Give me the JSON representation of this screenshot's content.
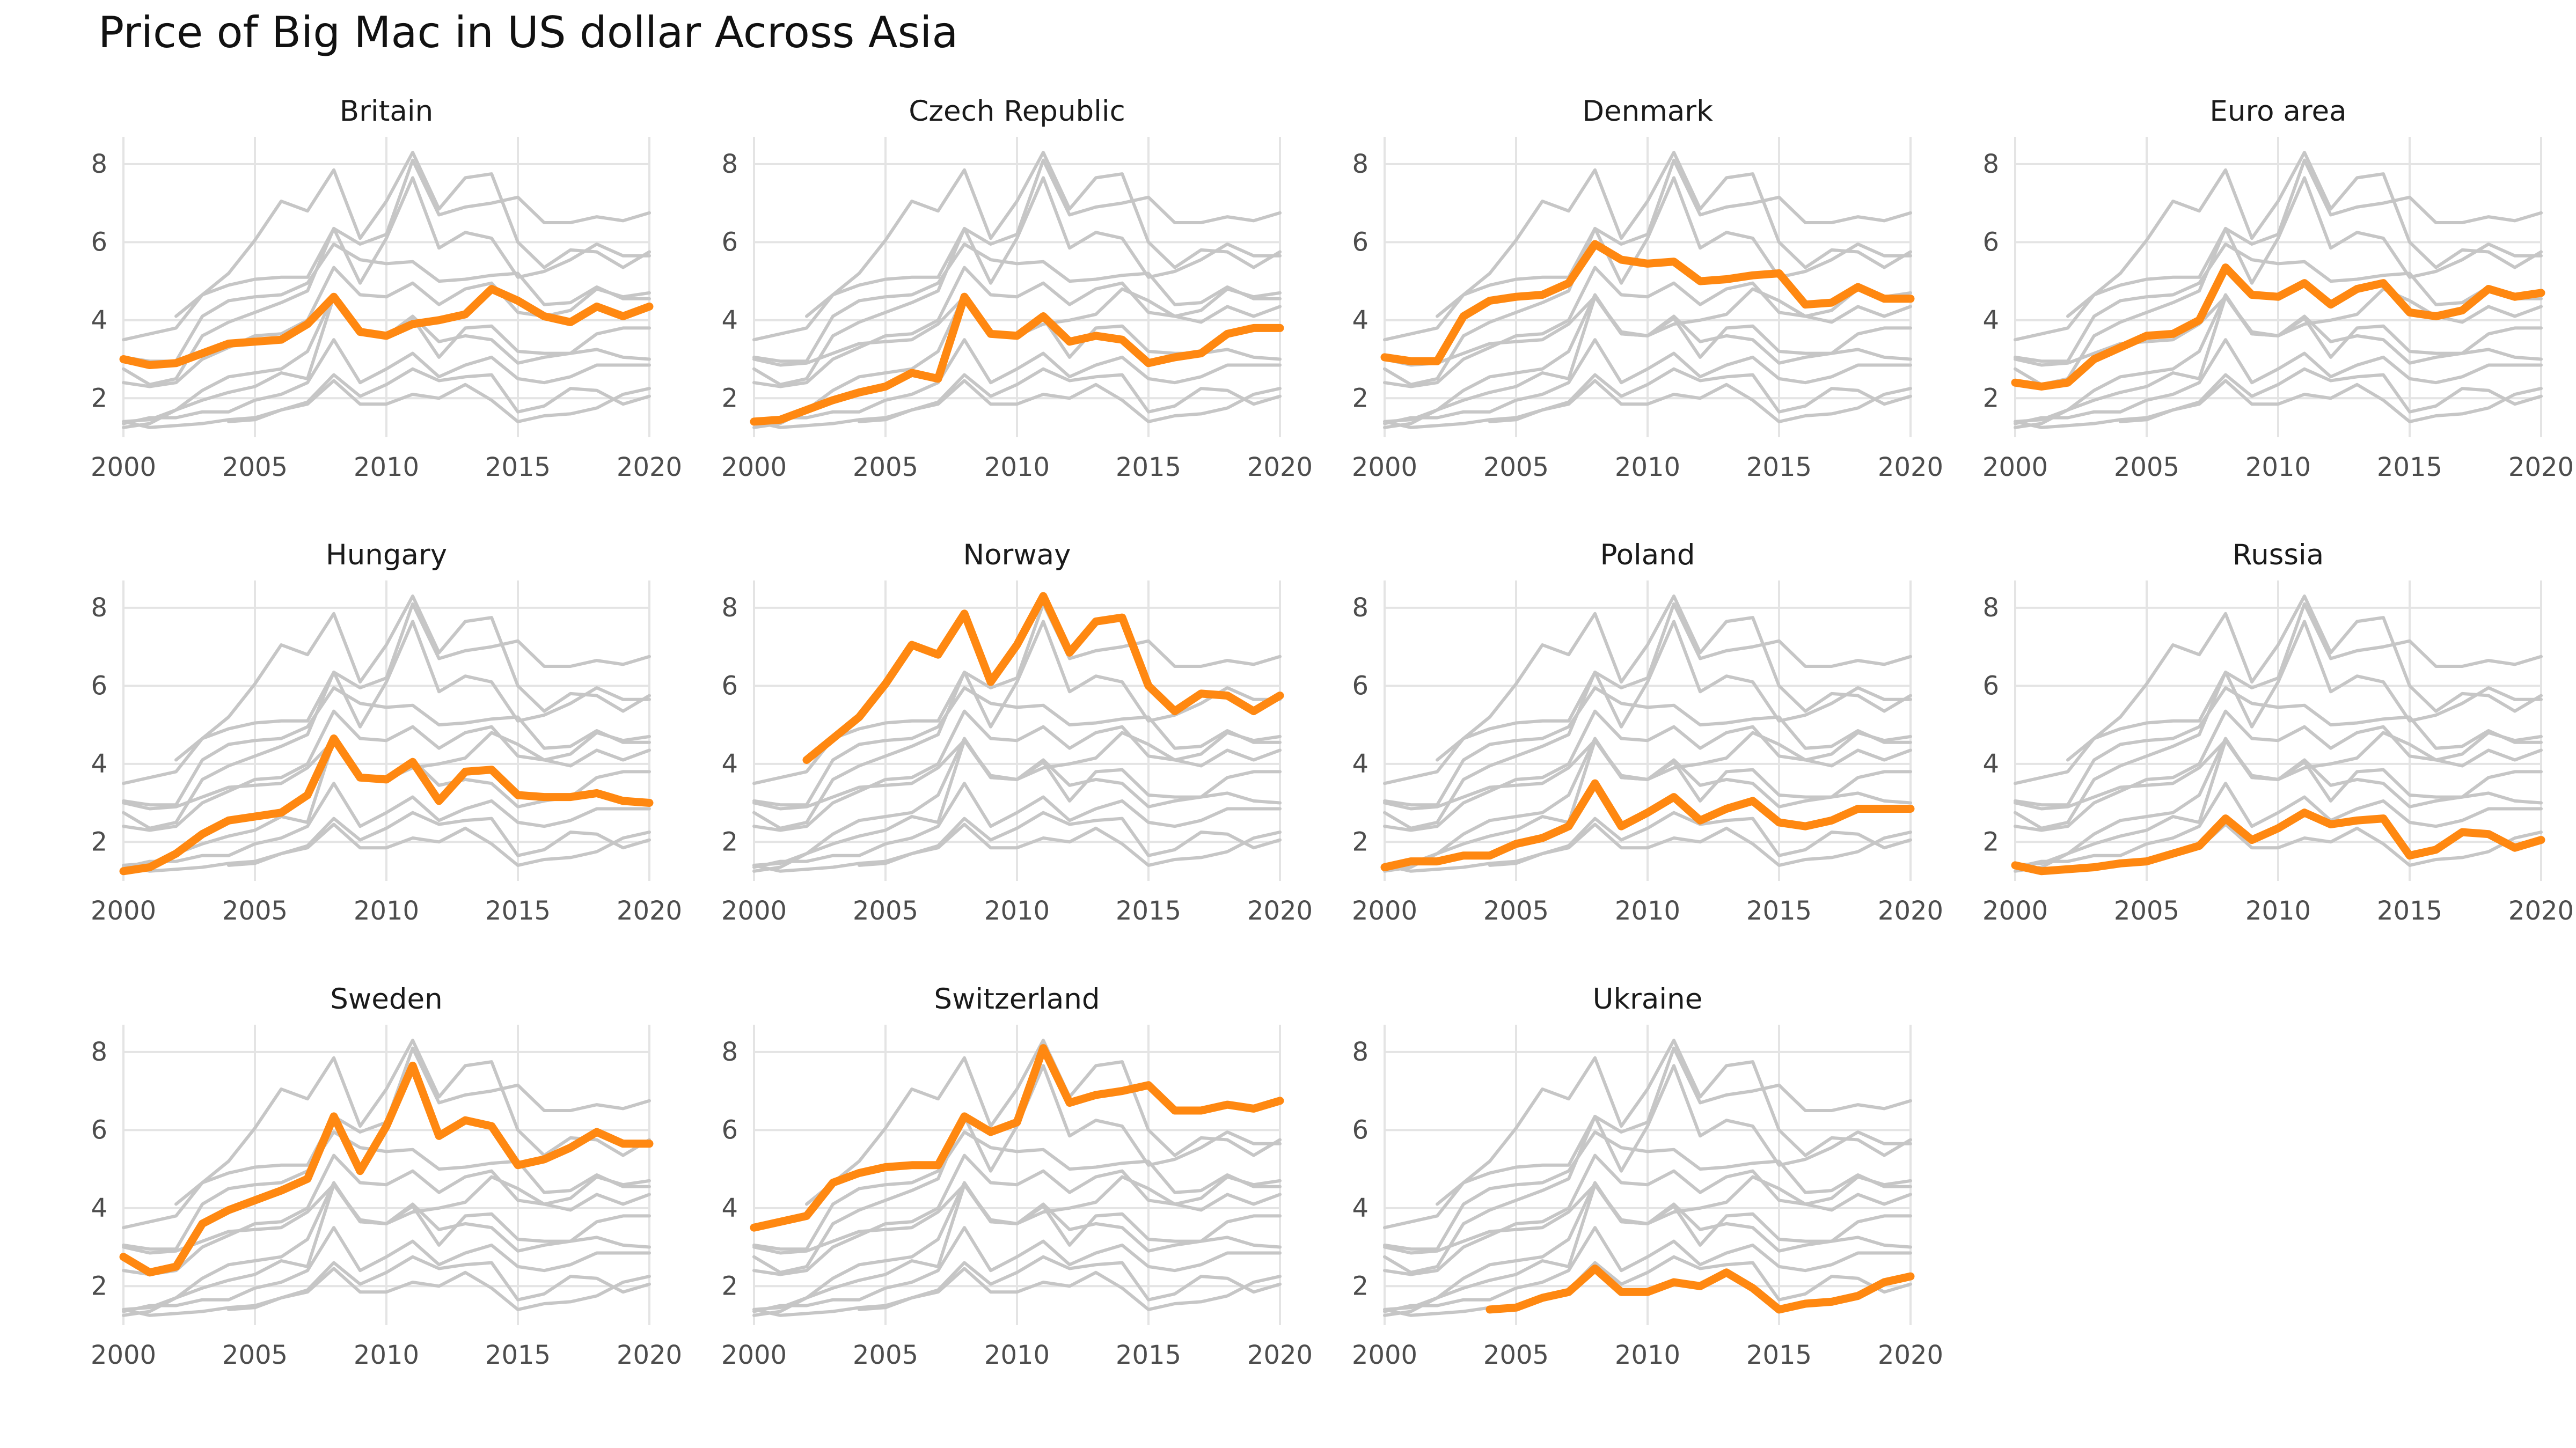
{
  "title": "Price of Big Mac in US dollar Across Asia",
  "chart_data": {
    "type": "line",
    "title": "Price of Big Mac in US dollar Across Asia",
    "layout": "small multiples (facets), each country highlighted against all others",
    "highlight_color": "#ff8811",
    "background_color": "#c6c6c6",
    "grid": true,
    "legend": "none",
    "xlim": [
      2000,
      2020
    ],
    "ylim": [
      1,
      8.7
    ],
    "x_ticks": [
      2000,
      2005,
      2010,
      2015,
      2020
    ],
    "y_ticks": [
      2,
      4,
      6,
      8
    ],
    "x": [
      2000,
      2001,
      2002,
      2003,
      2004,
      2005,
      2006,
      2007,
      2008,
      2009,
      2010,
      2011,
      2012,
      2013,
      2014,
      2015,
      2016,
      2017,
      2018,
      2019,
      2020
    ],
    "facets": [
      "Britain",
      "Czech Republic",
      "Denmark",
      "Euro area",
      "Hungary",
      "Norway",
      "Poland",
      "Russia",
      "Sweden",
      "Switzerland",
      "Ukraine"
    ],
    "series": [
      {
        "name": "Britain",
        "values": [
          3.0,
          2.85,
          2.9,
          3.15,
          3.4,
          3.45,
          3.5,
          3.9,
          4.6,
          3.7,
          3.6,
          3.9,
          4.0,
          4.15,
          4.8,
          4.5,
          4.1,
          3.95,
          4.35,
          4.1,
          4.35
        ]
      },
      {
        "name": "Czech Republic",
        "values": [
          1.4,
          1.45,
          1.7,
          1.95,
          2.15,
          2.3,
          2.65,
          2.5,
          4.6,
          3.65,
          3.6,
          4.1,
          3.45,
          3.6,
          3.5,
          2.9,
          3.05,
          3.15,
          3.65,
          3.8,
          3.8
        ]
      },
      {
        "name": "Denmark",
        "values": [
          3.05,
          2.95,
          2.95,
          4.1,
          4.5,
          4.6,
          4.65,
          4.95,
          5.95,
          5.55,
          5.45,
          5.5,
          5.0,
          5.05,
          5.15,
          5.2,
          4.4,
          4.45,
          4.85,
          4.55,
          4.55
        ]
      },
      {
        "name": "Euro area",
        "values": [
          2.4,
          2.3,
          2.4,
          3.0,
          3.3,
          3.6,
          3.65,
          4.0,
          5.35,
          4.65,
          4.6,
          4.95,
          4.4,
          4.8,
          4.95,
          4.2,
          4.1,
          4.25,
          4.8,
          4.6,
          4.7
        ]
      },
      {
        "name": "Hungary",
        "values": [
          1.25,
          1.35,
          1.7,
          2.2,
          2.55,
          2.65,
          2.75,
          3.2,
          4.65,
          3.65,
          3.6,
          4.05,
          3.05,
          3.8,
          3.85,
          3.2,
          3.15,
          3.15,
          3.25,
          3.05,
          3.0
        ]
      },
      {
        "name": "Norway",
        "values": [
          null,
          null,
          4.1,
          4.65,
          5.2,
          6.05,
          7.05,
          6.8,
          7.85,
          6.1,
          7.05,
          8.3,
          6.85,
          7.65,
          7.75,
          6.0,
          5.35,
          5.8,
          5.75,
          5.35,
          5.75
        ]
      },
      {
        "name": "Poland",
        "values": [
          1.35,
          1.5,
          1.5,
          1.65,
          1.65,
          1.95,
          2.1,
          2.4,
          3.5,
          2.4,
          2.75,
          3.15,
          2.55,
          2.85,
          3.05,
          2.5,
          2.4,
          2.55,
          2.85,
          2.85,
          2.85
        ]
      },
      {
        "name": "Russia",
        "values": [
          1.4,
          1.25,
          1.3,
          1.35,
          1.45,
          1.5,
          1.7,
          1.9,
          2.6,
          2.05,
          2.35,
          2.75,
          2.45,
          2.55,
          2.6,
          1.65,
          1.8,
          2.25,
          2.2,
          1.85,
          2.05
        ]
      },
      {
        "name": "Sweden",
        "values": [
          2.75,
          2.35,
          2.5,
          3.6,
          3.95,
          4.2,
          4.45,
          4.75,
          6.35,
          4.95,
          6.1,
          7.65,
          5.85,
          6.25,
          6.1,
          5.1,
          5.25,
          5.55,
          5.95,
          5.65,
          5.65
        ]
      },
      {
        "name": "Switzerland",
        "values": [
          3.5,
          3.65,
          3.8,
          4.65,
          4.9,
          5.05,
          5.1,
          5.1,
          6.35,
          5.95,
          6.2,
          8.1,
          6.7,
          6.9,
          7.0,
          7.15,
          6.5,
          6.5,
          6.65,
          6.55,
          6.75
        ]
      },
      {
        "name": "Ukraine",
        "values": [
          null,
          null,
          null,
          null,
          1.4,
          1.45,
          1.7,
          1.85,
          2.45,
          1.85,
          1.85,
          2.1,
          2.0,
          2.35,
          1.95,
          1.4,
          1.55,
          1.6,
          1.75,
          2.1,
          2.25
        ]
      }
    ]
  }
}
